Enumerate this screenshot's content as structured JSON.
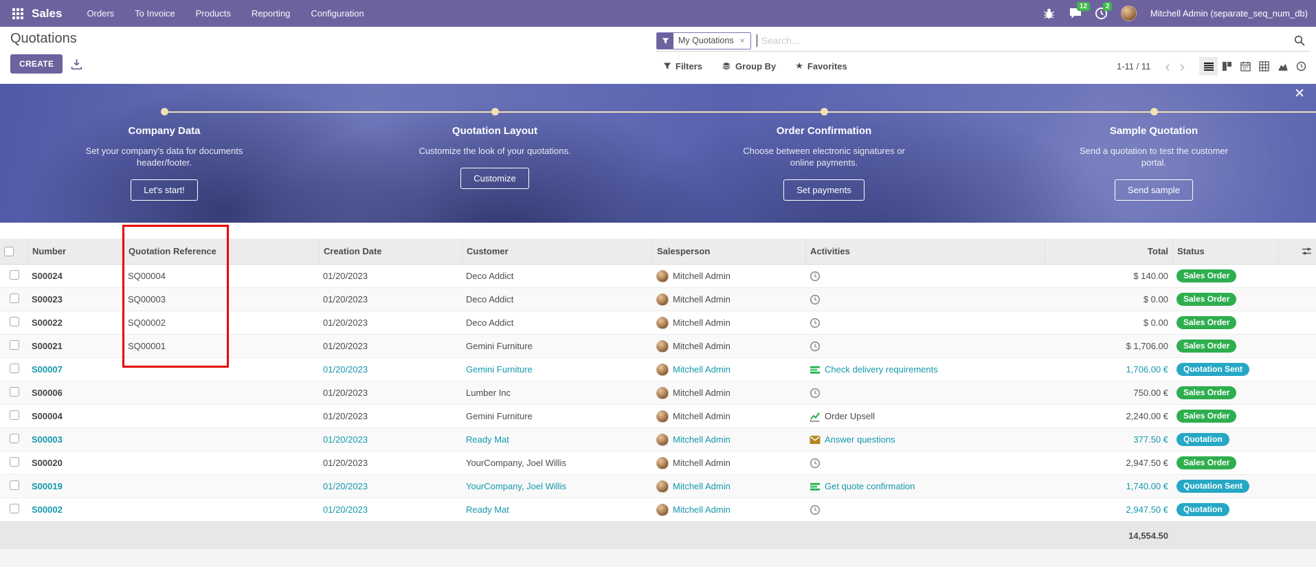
{
  "navbar": {
    "app_label": "Sales",
    "menus": [
      "Orders",
      "To Invoice",
      "Products",
      "Reporting",
      "Configuration"
    ],
    "systray": {
      "message_badge": "12",
      "activity_badge": "2",
      "username": "Mitchell Admin (separate_seq_num_db)"
    }
  },
  "control_panel": {
    "title": "Quotations",
    "create_label": "CREATE",
    "search": {
      "facet_label": "My Quotations",
      "placeholder": "Search..."
    },
    "filters_label": "Filters",
    "group_by_label": "Group By",
    "favorites_label": "Favorites",
    "pager": "1-11 / 11"
  },
  "banner": {
    "steps": [
      {
        "title": "Company Data",
        "desc": "Set your company's data for documents header/footer.",
        "button": "Let's start!"
      },
      {
        "title": "Quotation Layout",
        "desc": "Customize the look of your quotations.",
        "button": "Customize"
      },
      {
        "title": "Order Confirmation",
        "desc": "Choose between electronic signatures or online payments.",
        "button": "Set payments"
      },
      {
        "title": "Sample Quotation",
        "desc": "Send a quotation to test the customer portal.",
        "button": "Send sample"
      }
    ]
  },
  "table": {
    "columns": [
      "Number",
      "Quotation Reference",
      "Creation Date",
      "Customer",
      "Salesperson",
      "Activities",
      "Total",
      "Status"
    ],
    "rows": [
      {
        "number": "S00024",
        "reference": "SQ00004",
        "date": "01/20/2023",
        "customer": "Deco Addict",
        "salesperson": "Mitchell Admin",
        "activity": {
          "icon": "clock",
          "label": ""
        },
        "total": "$ 140.00",
        "status": "Sales Order",
        "status_type": "success",
        "highlighted": false
      },
      {
        "number": "S00023",
        "reference": "SQ00003",
        "date": "01/20/2023",
        "customer": "Deco Addict",
        "salesperson": "Mitchell Admin",
        "activity": {
          "icon": "clock",
          "label": ""
        },
        "total": "$ 0.00",
        "status": "Sales Order",
        "status_type": "success",
        "highlighted": false
      },
      {
        "number": "S00022",
        "reference": "SQ00002",
        "date": "01/20/2023",
        "customer": "Deco Addict",
        "salesperson": "Mitchell Admin",
        "activity": {
          "icon": "clock",
          "label": ""
        },
        "total": "$ 0.00",
        "status": "Sales Order",
        "status_type": "success",
        "highlighted": false
      },
      {
        "number": "S00021",
        "reference": "SQ00001",
        "date": "01/20/2023",
        "customer": "Gemini Furniture",
        "salesperson": "Mitchell Admin",
        "activity": {
          "icon": "clock",
          "label": ""
        },
        "total": "$ 1,706.00",
        "status": "Sales Order",
        "status_type": "success",
        "highlighted": false
      },
      {
        "number": "S00007",
        "reference": "",
        "date": "01/20/2023",
        "customer": "Gemini Furniture",
        "salesperson": "Mitchell Admin",
        "activity": {
          "icon": "list",
          "label": "Check delivery requirements"
        },
        "total": "1,706.00 €",
        "status": "Quotation Sent",
        "status_type": "info",
        "highlighted": true
      },
      {
        "number": "S00006",
        "reference": "",
        "date": "01/20/2023",
        "customer": "Lumber Inc",
        "salesperson": "Mitchell Admin",
        "activity": {
          "icon": "clock",
          "label": ""
        },
        "total": "750.00 €",
        "status": "Sales Order",
        "status_type": "success",
        "highlighted": false
      },
      {
        "number": "S00004",
        "reference": "",
        "date": "01/20/2023",
        "customer": "Gemini Furniture",
        "salesperson": "Mitchell Admin",
        "activity": {
          "icon": "chart",
          "label": "Order Upsell"
        },
        "total": "2,240.00 €",
        "status": "Sales Order",
        "status_type": "success",
        "highlighted": false
      },
      {
        "number": "S00003",
        "reference": "",
        "date": "01/20/2023",
        "customer": "Ready Mat",
        "salesperson": "Mitchell Admin",
        "activity": {
          "icon": "envelope",
          "label": "Answer questions"
        },
        "total": "377.50 €",
        "status": "Quotation",
        "status_type": "info",
        "highlighted": true
      },
      {
        "number": "S00020",
        "reference": "",
        "date": "01/20/2023",
        "customer": "YourCompany, Joel Willis",
        "salesperson": "Mitchell Admin",
        "activity": {
          "icon": "clock",
          "label": ""
        },
        "total": "2,947.50 €",
        "status": "Sales Order",
        "status_type": "success",
        "highlighted": false
      },
      {
        "number": "S00019",
        "reference": "",
        "date": "01/20/2023",
        "customer": "YourCompany, Joel Willis",
        "salesperson": "Mitchell Admin",
        "activity": {
          "icon": "list",
          "label": "Get quote confirmation"
        },
        "total": "1,740.00 €",
        "status": "Quotation Sent",
        "status_type": "info",
        "highlighted": true
      },
      {
        "number": "S00002",
        "reference": "",
        "date": "01/20/2023",
        "customer": "Ready Mat",
        "salesperson": "Mitchell Admin",
        "activity": {
          "icon": "clock",
          "label": ""
        },
        "total": "2,947.50 €",
        "status": "Quotation",
        "status_type": "info",
        "highlighted": true
      }
    ],
    "footer_total": "14,554.50"
  },
  "colors": {
    "brand_purple": "#6d629e",
    "teal_text": "#1598ad",
    "success_badge": "#2eae4e",
    "info_badge": "#26a8c5",
    "annotation_red": "#e60000",
    "timeline_cream": "#f1dfb6"
  }
}
